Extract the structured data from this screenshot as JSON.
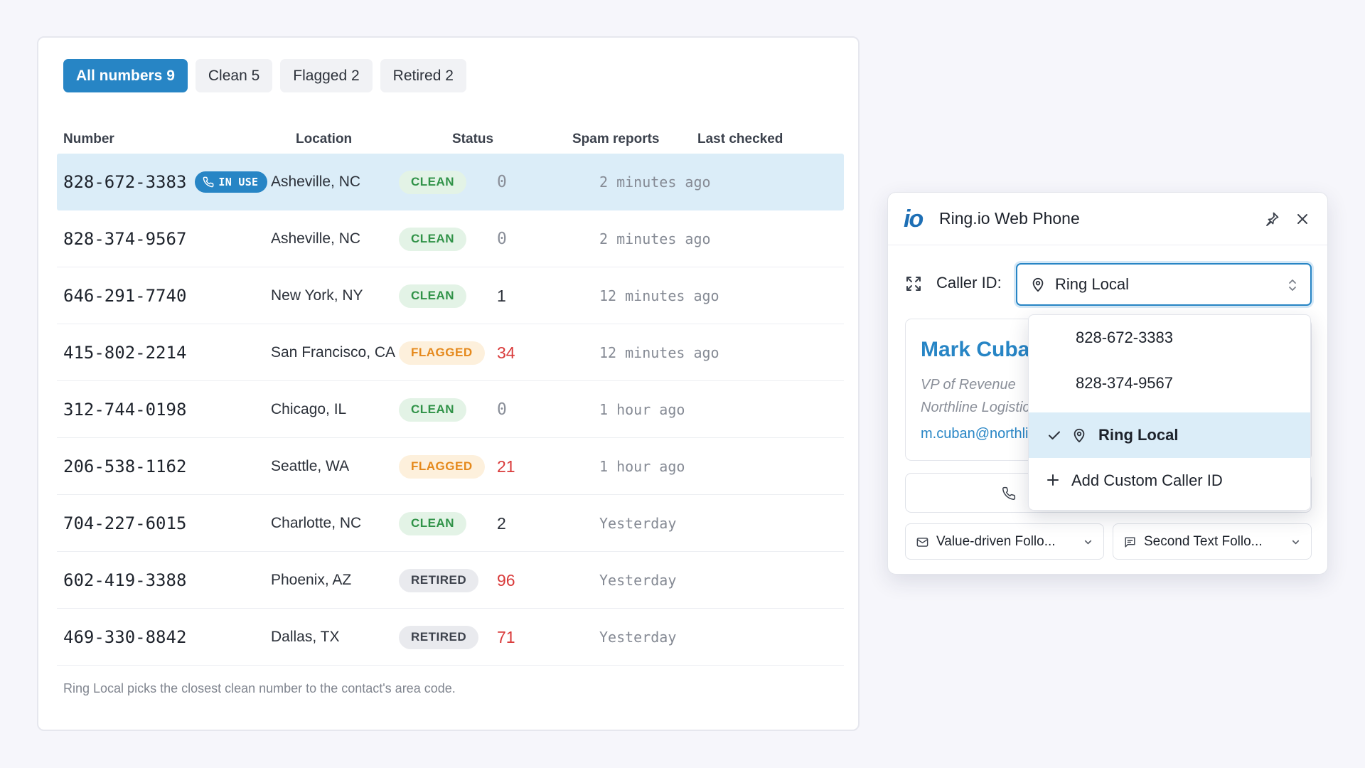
{
  "tabs": [
    {
      "label": "All numbers 9",
      "active": true
    },
    {
      "label": "Clean 5",
      "active": false
    },
    {
      "label": "Flagged 2",
      "active": false
    },
    {
      "label": "Retired 2",
      "active": false
    }
  ],
  "columns": {
    "number": "Number",
    "location": "Location",
    "status": "Status",
    "spam": "Spam reports",
    "checked": "Last checked"
  },
  "in_use_label": "IN USE",
  "rows": [
    {
      "number": "828-672-3383",
      "location": "Asheville, NC",
      "status": "CLEAN",
      "spam": "0",
      "checked": "2 minutes ago"
    },
    {
      "number": "828-374-9567",
      "location": "Asheville, NC",
      "status": "CLEAN",
      "spam": "0",
      "checked": "2 minutes ago"
    },
    {
      "number": "646-291-7740",
      "location": "New York, NY",
      "status": "CLEAN",
      "spam": "1",
      "checked": "12 minutes ago"
    },
    {
      "number": "415-802-2214",
      "location": "San Francisco, CA",
      "status": "FLAGGED",
      "spam": "34",
      "checked": "12 minutes ago"
    },
    {
      "number": "312-744-0198",
      "location": "Chicago, IL",
      "status": "CLEAN",
      "spam": "0",
      "checked": "1 hour ago"
    },
    {
      "number": "206-538-1162",
      "location": "Seattle, WA",
      "status": "FLAGGED",
      "spam": "21",
      "checked": "1 hour ago"
    },
    {
      "number": "704-227-6015",
      "location": "Charlotte, NC",
      "status": "CLEAN",
      "spam": "2",
      "checked": "Yesterday"
    },
    {
      "number": "602-419-3388",
      "location": "Phoenix, AZ",
      "status": "RETIRED",
      "spam": "96",
      "checked": "Yesterday"
    },
    {
      "number": "469-330-8842",
      "location": "Dallas, TX",
      "status": "RETIRED",
      "spam": "71",
      "checked": "Yesterday"
    }
  ],
  "footnote": "Ring Local picks the closest clean number to the contact's area code.",
  "phone": {
    "logo": "io",
    "title": "Ring.io Web Phone",
    "caller_label": "Caller ID:",
    "caller_value": "Ring Local",
    "contact": {
      "name": "Mark Cuban",
      "title": "VP of Revenue",
      "company": "Northline Logistics",
      "email": "m.cuban@northline.com"
    },
    "template_a": "Value-driven Follo...",
    "template_b": "Second Text Follo..."
  },
  "menu": {
    "items": [
      "828-672-3383",
      "828-374-9567",
      "Ring Local"
    ],
    "add": "Add Custom Caller ID"
  },
  "colors": {
    "accent": "#2785c5",
    "clean": "#2f9247",
    "flagged": "#e5891c",
    "spam_high": "#d93a3a"
  }
}
